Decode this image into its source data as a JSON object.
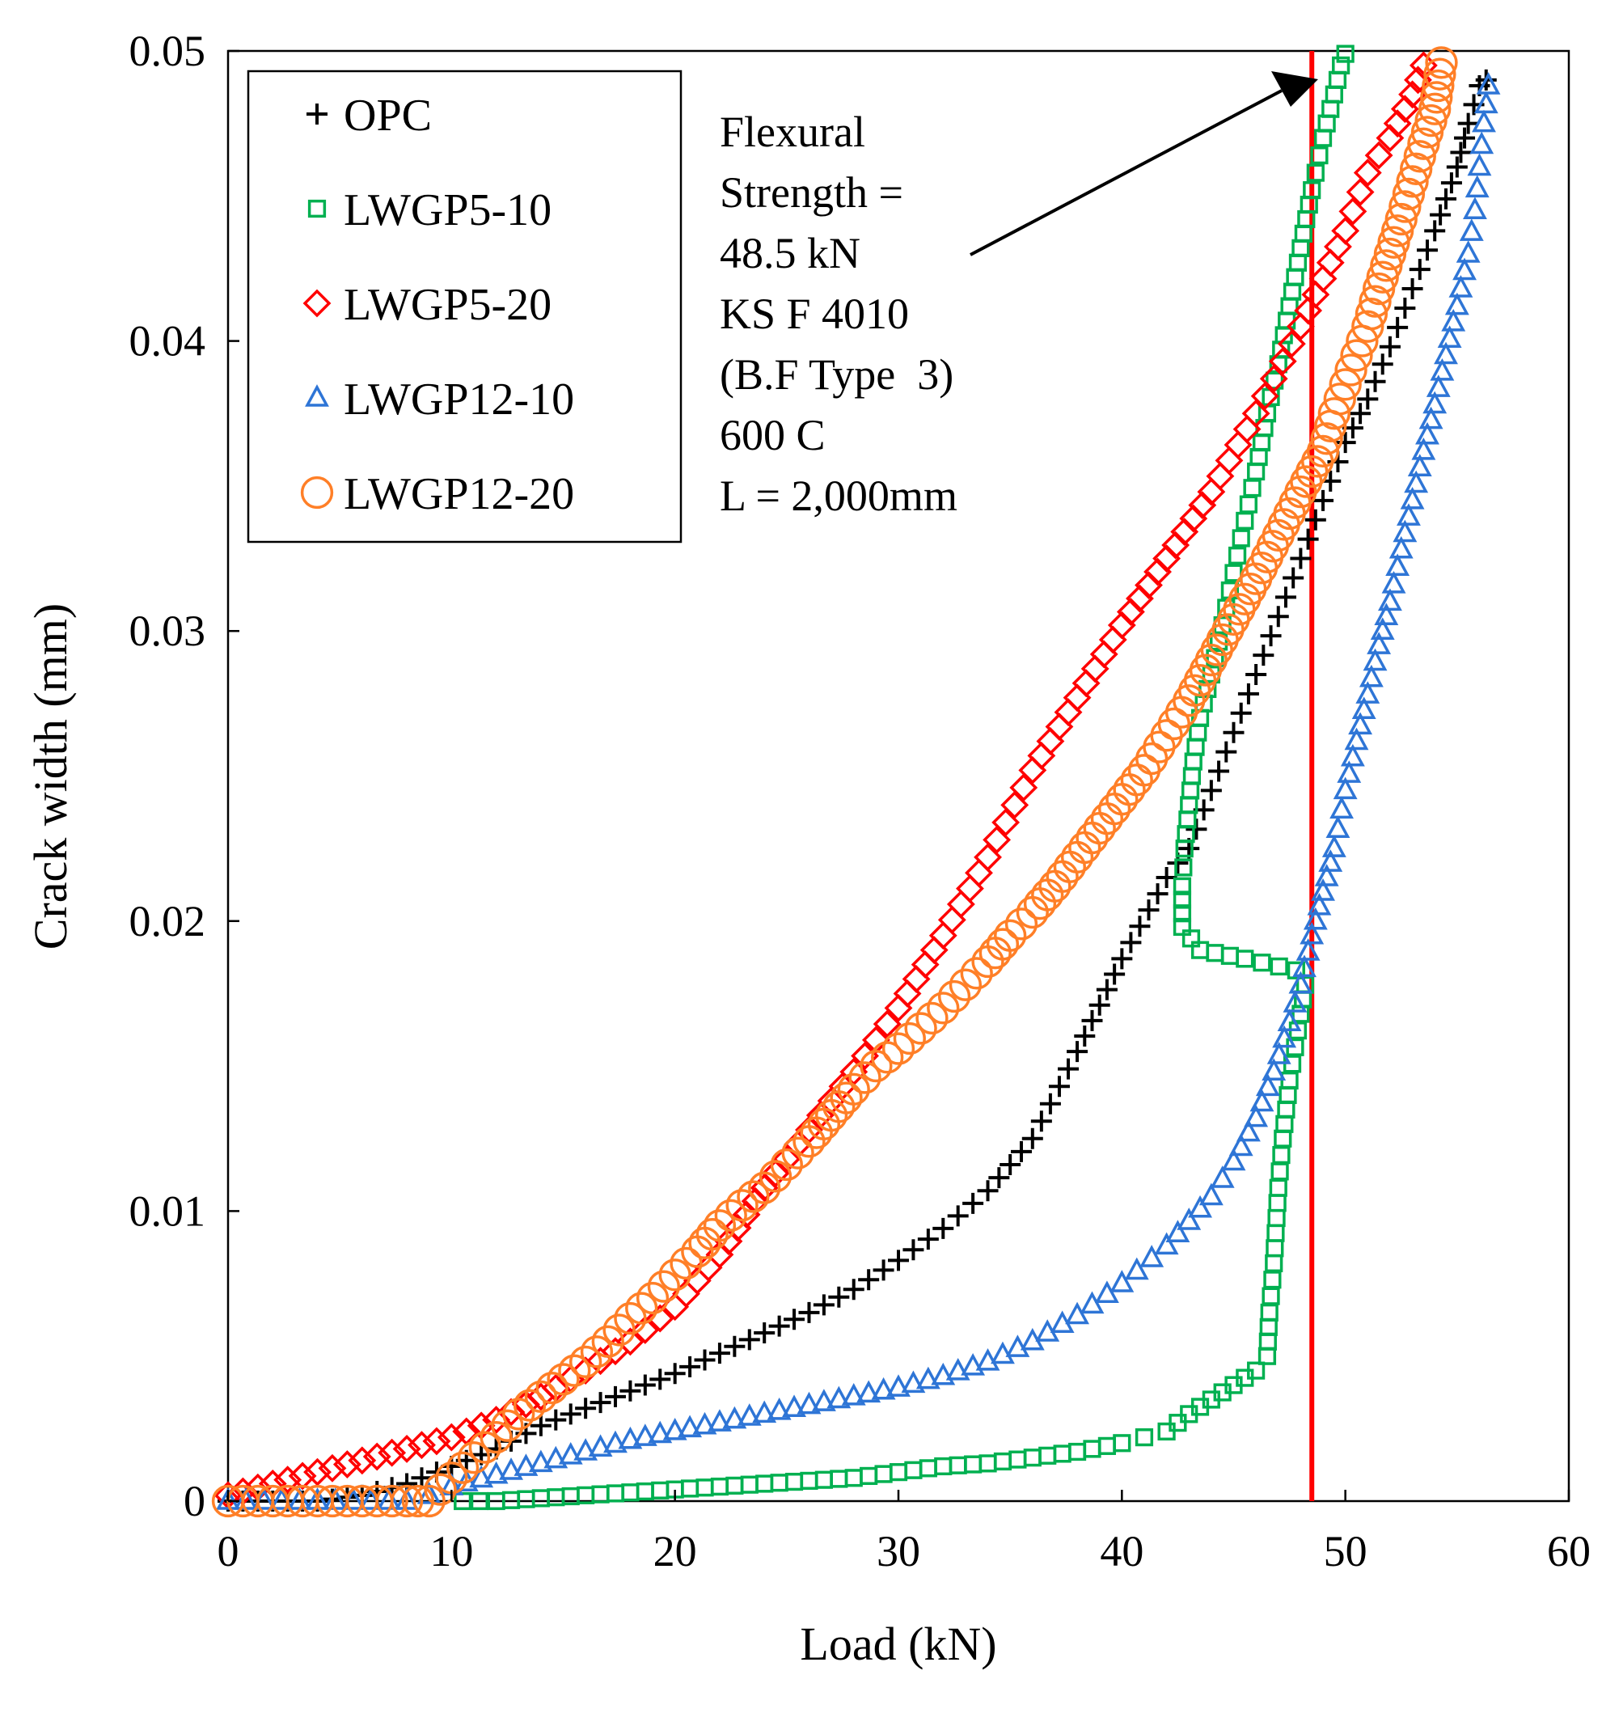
{
  "chart_data": {
    "type": "scatter",
    "xlabel": "Load (kN)",
    "ylabel": "Crack width (mm)",
    "xlim": [
      0,
      60
    ],
    "ylim": [
      0,
      0.05
    ],
    "x_ticks": [
      "0",
      "10",
      "20",
      "30",
      "40",
      "50",
      "60"
    ],
    "y_ticks": [
      "0",
      "0.01",
      "0.02",
      "0.03",
      "0.04",
      "0.05"
    ],
    "grid": false,
    "legend_position": "top-left",
    "reference_line": {
      "x": 48.5,
      "color": "#ff0000"
    },
    "annotation": {
      "lines": [
        "Flexural",
        "Strength =",
        "48.5 kN",
        "KS F 4010",
        "(B.F Type  3)",
        "600 C",
        "L = 2,000mm"
      ],
      "arrow_to": [
        48.5,
        0.0485
      ]
    },
    "series": [
      {
        "name": "OPC",
        "marker": "plus",
        "color": "#000000",
        "points": [
          [
            0,
            0
          ],
          [
            2,
            0
          ],
          [
            4,
            0
          ],
          [
            6,
            0.0002
          ],
          [
            8,
            0.0006
          ],
          [
            10,
            0.0012
          ],
          [
            12,
            0.0018
          ],
          [
            14,
            0.0026
          ],
          [
            16,
            0.0032
          ],
          [
            18,
            0.0038
          ],
          [
            20,
            0.0044
          ],
          [
            22,
            0.0051
          ],
          [
            24,
            0.0058
          ],
          [
            26,
            0.0065
          ],
          [
            28,
            0.0073
          ],
          [
            30,
            0.0083
          ],
          [
            32,
            0.0094
          ],
          [
            34,
            0.0107
          ],
          [
            36,
            0.0125
          ],
          [
            38,
            0.0155
          ],
          [
            40,
            0.0187
          ],
          [
            42,
            0.0215
          ],
          [
            43,
            0.0225
          ],
          [
            44,
            0.0245
          ],
          [
            45,
            0.0265
          ],
          [
            46,
            0.0285
          ],
          [
            47,
            0.0305
          ],
          [
            48,
            0.0325
          ],
          [
            49,
            0.0345
          ],
          [
            50,
            0.0365
          ],
          [
            51,
            0.038
          ],
          [
            52,
            0.0398
          ],
          [
            53,
            0.0418
          ],
          [
            54,
            0.0438
          ],
          [
            55,
            0.046
          ],
          [
            55.5,
            0.0475
          ],
          [
            56,
            0.0488
          ],
          [
            56.3,
            0.049
          ]
        ]
      },
      {
        "name": "LWGP5-10",
        "marker": "square",
        "color": "#00b050",
        "points": [
          [
            10.5,
            0
          ],
          [
            12,
            0
          ],
          [
            14,
            0.0001
          ],
          [
            16,
            0.0002
          ],
          [
            18,
            0.0003
          ],
          [
            20,
            0.0004
          ],
          [
            22,
            0.0005
          ],
          [
            24,
            0.0006
          ],
          [
            26,
            0.0007
          ],
          [
            28,
            0.0008
          ],
          [
            30,
            0.001
          ],
          [
            32,
            0.0012
          ],
          [
            34,
            0.0013
          ],
          [
            36,
            0.0015
          ],
          [
            38,
            0.0017
          ],
          [
            40,
            0.002
          ],
          [
            41,
            0.0022
          ],
          [
            42,
            0.0024
          ],
          [
            43,
            0.003
          ],
          [
            44,
            0.0035
          ],
          [
            45,
            0.004
          ],
          [
            46,
            0.0045
          ],
          [
            46.5,
            0.005
          ],
          [
            46.6,
            0.0065
          ],
          [
            46.8,
            0.0082
          ],
          [
            47,
            0.0108
          ],
          [
            47.2,
            0.0125
          ],
          [
            47.5,
            0.0145
          ],
          [
            48,
            0.0168
          ],
          [
            48.2,
            0.0178
          ],
          [
            47.8,
            0.0183
          ],
          [
            45.5,
            0.0187
          ],
          [
            43.5,
            0.019
          ],
          [
            42.7,
            0.0198
          ],
          [
            42.7,
            0.0212
          ],
          [
            42.8,
            0.0225
          ],
          [
            43,
            0.024
          ],
          [
            43.2,
            0.0255
          ],
          [
            43.5,
            0.027
          ],
          [
            44,
            0.0285
          ],
          [
            44.5,
            0.0302
          ],
          [
            45,
            0.032
          ],
          [
            45.5,
            0.0338
          ],
          [
            46,
            0.0355
          ],
          [
            46.5,
            0.0375
          ],
          [
            47,
            0.0392
          ],
          [
            47.5,
            0.0412
          ],
          [
            48,
            0.0432
          ],
          [
            48.5,
            0.0452
          ],
          [
            49,
            0.047
          ],
          [
            49.5,
            0.0485
          ],
          [
            49.8,
            0.0495
          ],
          [
            50,
            0.0499
          ]
        ]
      },
      {
        "name": "LWGP5-20",
        "marker": "diamond",
        "color": "#ff0000",
        "points": [
          [
            0,
            0.0002
          ],
          [
            2,
            0.0006
          ],
          [
            4,
            0.001
          ],
          [
            6,
            0.0014
          ],
          [
            8,
            0.0018
          ],
          [
            10,
            0.0022
          ],
          [
            12,
            0.0028
          ],
          [
            14,
            0.0036
          ],
          [
            16,
            0.0045
          ],
          [
            18,
            0.0055
          ],
          [
            20,
            0.0067
          ],
          [
            22,
            0.0085
          ],
          [
            24,
            0.0108
          ],
          [
            26,
            0.0128
          ],
          [
            28,
            0.0148
          ],
          [
            30,
            0.017
          ],
          [
            32,
            0.0195
          ],
          [
            34,
            0.0222
          ],
          [
            36,
            0.0252
          ],
          [
            38,
            0.0277
          ],
          [
            40,
            0.0302
          ],
          [
            42,
            0.0325
          ],
          [
            44,
            0.0348
          ],
          [
            46,
            0.0375
          ],
          [
            48,
            0.0405
          ],
          [
            50,
            0.0438
          ],
          [
            51,
            0.0458
          ],
          [
            52,
            0.047
          ],
          [
            53,
            0.0485
          ],
          [
            53.5,
            0.0495
          ]
        ]
      },
      {
        "name": "LWGP12-10",
        "marker": "triangle",
        "color": "#2e75d6",
        "points": [
          [
            0,
            0
          ],
          [
            4,
            0
          ],
          [
            8,
            0
          ],
          [
            9,
            0.0002
          ],
          [
            10,
            0.0005
          ],
          [
            12,
            0.0009
          ],
          [
            14,
            0.0013
          ],
          [
            16,
            0.0017
          ],
          [
            18,
            0.0021
          ],
          [
            20,
            0.0024
          ],
          [
            22,
            0.0027
          ],
          [
            24,
            0.003
          ],
          [
            26,
            0.0033
          ],
          [
            28,
            0.0036
          ],
          [
            30,
            0.0039
          ],
          [
            32,
            0.0043
          ],
          [
            34,
            0.0048
          ],
          [
            36,
            0.0055
          ],
          [
            38,
            0.0064
          ],
          [
            40,
            0.0075
          ],
          [
            42,
            0.0088
          ],
          [
            44,
            0.0105
          ],
          [
            45,
            0.0117
          ],
          [
            46,
            0.0132
          ],
          [
            46.8,
            0.0148
          ],
          [
            47.5,
            0.0165
          ],
          [
            48,
            0.0178
          ],
          [
            48.5,
            0.0195
          ],
          [
            49,
            0.021
          ],
          [
            49.5,
            0.0225
          ],
          [
            50,
            0.0245
          ],
          [
            50.5,
            0.0262
          ],
          [
            51,
            0.0278
          ],
          [
            51.5,
            0.0295
          ],
          [
            52,
            0.031
          ],
          [
            52.5,
            0.0328
          ],
          [
            53,
            0.0345
          ],
          [
            53.5,
            0.0362
          ],
          [
            54,
            0.0378
          ],
          [
            54.5,
            0.0395
          ],
          [
            55,
            0.0412
          ],
          [
            55.5,
            0.043
          ],
          [
            55.8,
            0.0445
          ],
          [
            56,
            0.046
          ],
          [
            56.2,
            0.0475
          ],
          [
            56.4,
            0.0488
          ]
        ]
      },
      {
        "name": "LWGP12-20",
        "marker": "circle",
        "color": "#ff7f27",
        "points": [
          [
            0,
            0
          ],
          [
            2,
            0
          ],
          [
            4,
            0
          ],
          [
            6,
            0
          ],
          [
            8,
            0
          ],
          [
            9,
            0
          ],
          [
            10,
            0.0008
          ],
          [
            11,
            0.0015
          ],
          [
            12,
            0.0022
          ],
          [
            13,
            0.003
          ],
          [
            14,
            0.0036
          ],
          [
            15,
            0.0042
          ],
          [
            16,
            0.0048
          ],
          [
            17,
            0.0055
          ],
          [
            18,
            0.0063
          ],
          [
            19,
            0.007
          ],
          [
            20,
            0.0078
          ],
          [
            21,
            0.0086
          ],
          [
            22,
            0.0095
          ],
          [
            23,
            0.0102
          ],
          [
            24,
            0.0108
          ],
          [
            25,
            0.0116
          ],
          [
            26,
            0.0124
          ],
          [
            27,
            0.0133
          ],
          [
            28,
            0.0142
          ],
          [
            29,
            0.015
          ],
          [
            30,
            0.0156
          ],
          [
            31,
            0.0163
          ],
          [
            32,
            0.017
          ],
          [
            33,
            0.0178
          ],
          [
            34,
            0.0186
          ],
          [
            35,
            0.0195
          ],
          [
            36,
            0.0203
          ],
          [
            37,
            0.0212
          ],
          [
            38,
            0.0222
          ],
          [
            39,
            0.0232
          ],
          [
            40,
            0.0242
          ],
          [
            41,
            0.0252
          ],
          [
            42,
            0.0264
          ],
          [
            43,
            0.0276
          ],
          [
            44,
            0.029
          ],
          [
            45,
            0.0304
          ],
          [
            46,
            0.0318
          ],
          [
            47,
            0.0333
          ],
          [
            48,
            0.0348
          ],
          [
            49,
            0.0362
          ],
          [
            49.5,
            0.0375
          ],
          [
            50,
            0.0385
          ],
          [
            50.5,
            0.0395
          ],
          [
            51,
            0.0405
          ],
          [
            51.5,
            0.0418
          ],
          [
            52,
            0.043
          ],
          [
            52.5,
            0.0442
          ],
          [
            53,
            0.0455
          ],
          [
            53.5,
            0.0468
          ],
          [
            54,
            0.048
          ],
          [
            54.3,
            0.0496
          ]
        ]
      }
    ]
  }
}
